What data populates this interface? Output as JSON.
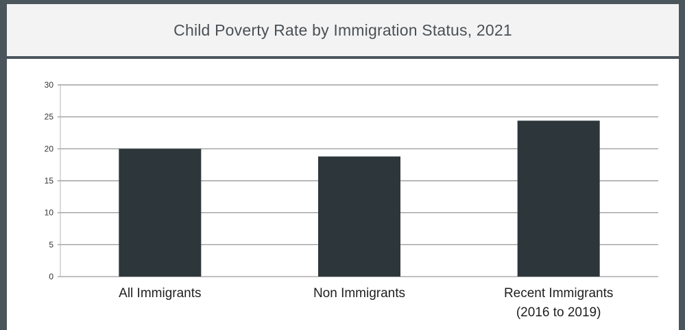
{
  "chart_data": {
    "type": "bar",
    "title": "Child Poverty Rate by Immigration Status, 2021",
    "categories": [
      [
        "All Immigrants"
      ],
      [
        "Non Immigrants"
      ],
      [
        "Recent Immigrants",
        "(2016 to 2019)"
      ]
    ],
    "values": [
      20,
      18.8,
      24.4
    ],
    "yticks": [
      "0",
      "5",
      "10",
      "15",
      "20",
      "25",
      "30"
    ],
    "ylim": [
      0,
      30
    ],
    "grid": true,
    "xlabel": "",
    "ylabel": "",
    "bar_color": "#2d363b"
  }
}
